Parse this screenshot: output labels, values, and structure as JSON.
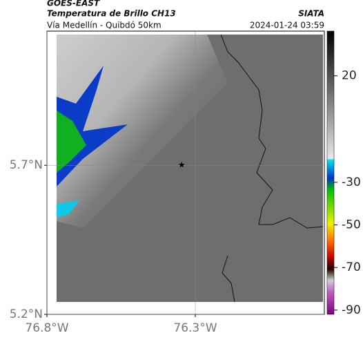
{
  "header": {
    "source": "GOES-EAST",
    "title": "Temperatura de Brillo CH13",
    "agency": "SIATA",
    "subtitle": "Vía Medellín - Quibdó 50km",
    "datetime": "2024-01-24 03:59"
  },
  "map": {
    "lonlim": [
      -76.8,
      -75.865
    ],
    "latlim": [
      5.2,
      6.15
    ],
    "lat_ticks": [
      {
        "value": 5.2,
        "label": "5.2°N"
      },
      {
        "value": 5.7,
        "label": "5.7°N"
      }
    ],
    "lon_ticks": [
      {
        "value": -76.8,
        "label": "76.8°W"
      },
      {
        "value": -76.3,
        "label": "76.3°W"
      }
    ],
    "grid": true,
    "marker": {
      "lon": -76.346,
      "lat": 5.7
    }
  },
  "colorbar": {
    "lim": [
      -92,
      41
    ],
    "ticks": [
      20,
      -30,
      -50,
      -70,
      -90
    ]
  }
}
